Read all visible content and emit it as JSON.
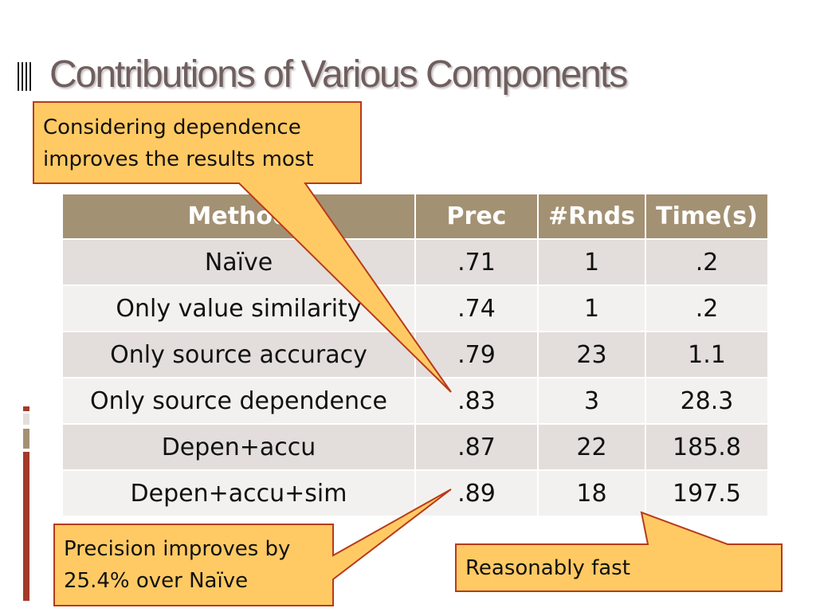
{
  "slide": {
    "title": "Contributions of Various Components"
  },
  "table": {
    "headers": [
      "Method",
      "Prec",
      "#Rnds",
      "Time(s)"
    ],
    "rows": [
      [
        "Naïve",
        ".71",
        "1",
        ".2"
      ],
      [
        "Only value similarity",
        ".74",
        "1",
        ".2"
      ],
      [
        "Only source accuracy",
        ".79",
        "23",
        "1.1"
      ],
      [
        "Only source dependence",
        ".83",
        "3",
        "28.3"
      ],
      [
        "Depen+accu",
        ".87",
        "22",
        "185.8"
      ],
      [
        "Depen+accu+sim",
        ".89",
        "18",
        "197.5"
      ]
    ]
  },
  "callouts": {
    "dependence": {
      "line1": "Considering dependence",
      "line2": "improves the results most"
    },
    "precision": {
      "line1": "Precision improves by",
      "line2": "25.4% over Naïve"
    },
    "speed": {
      "line1": "Reasonably fast"
    }
  },
  "colors": {
    "title": "#6f5f5f",
    "header_bg": "#a39173",
    "row_odd": "#e3dedb",
    "row_even": "#f3f1ef",
    "callout_fill": "#ffca64",
    "callout_stroke": "#b83a1a",
    "accent_bar": "#a33a2a"
  }
}
